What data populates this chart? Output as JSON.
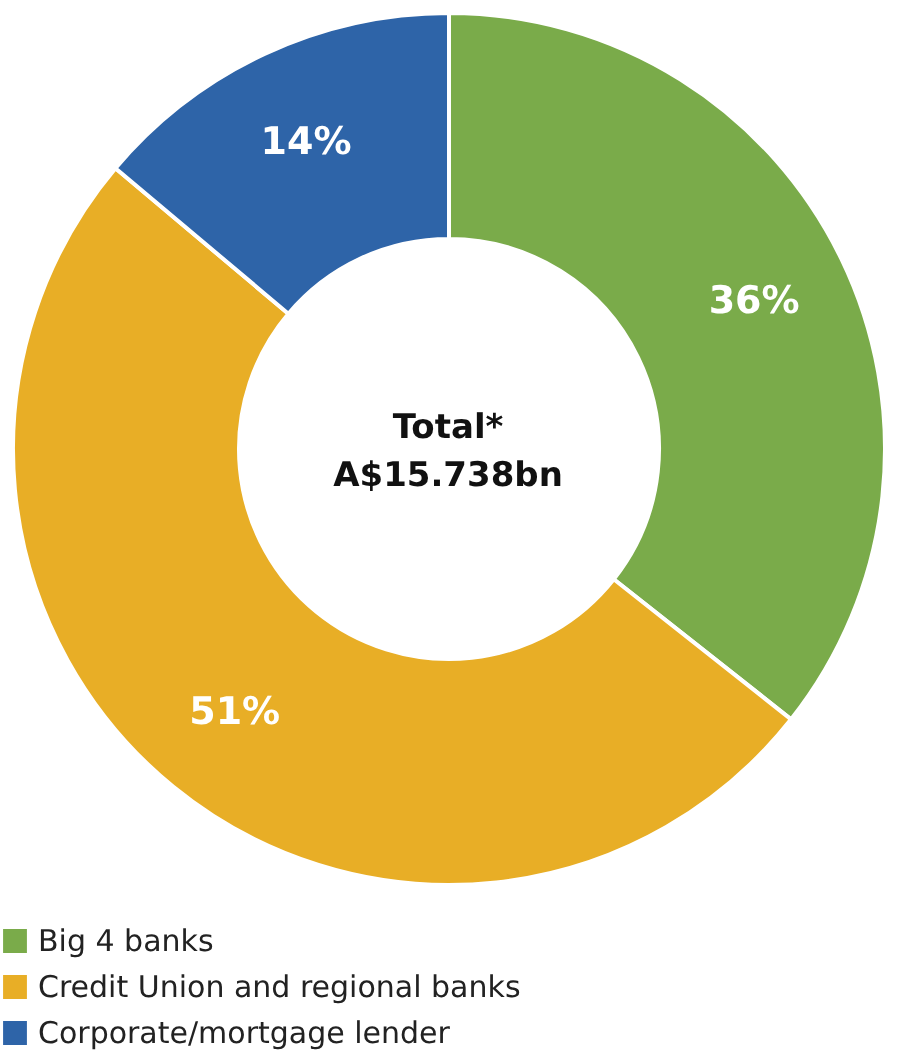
{
  "chart_data": {
    "type": "donut",
    "categories": [
      "Big 4 banks",
      "Credit Union and regional banks",
      "Corporate/mortgage lender"
    ],
    "values": [
      36,
      51,
      14
    ],
    "colors": [
      "#7aab4a",
      "#e8ae26",
      "#2e64a8"
    ],
    "value_labels": [
      "36%",
      "51%",
      "14%"
    ],
    "annotations": [
      "Total*",
      "A$15.738bn"
    ],
    "legend": "bottom"
  }
}
